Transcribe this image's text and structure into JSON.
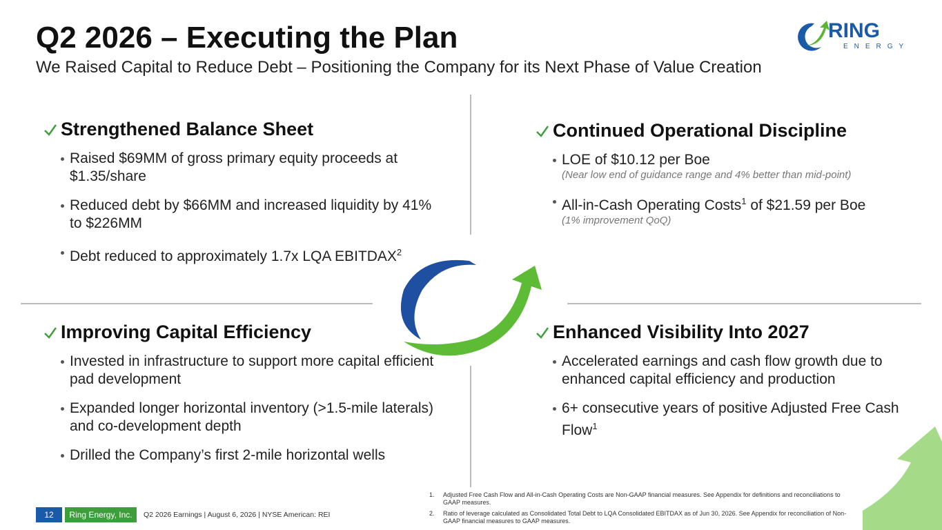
{
  "header": {
    "title": "Q2 2026 – Executing the Plan",
    "subtitle": "We Raised Capital to Reduce Debt – Positioning the Company for its Next Phase of Value Creation"
  },
  "logo": {
    "name": "RING",
    "tagline": "ENERGY"
  },
  "quadrants": [
    {
      "heading": "Strengthened Balance Sheet",
      "bullets": [
        {
          "text": "Raised $69MM of gross primary equity proceeds at $1.35/share"
        },
        {
          "text": "Reduced debt by $66MM and increased liquidity by 41% to $226MM"
        },
        {
          "text": "Debt reduced to approximately 1.7x LQA EBITDAX",
          "sup": "2"
        }
      ]
    },
    {
      "heading": "Continued Operational Discipline",
      "bullets": [
        {
          "text": "LOE of $10.12 per Boe",
          "note": "(Near low end of guidance range and 4% better than mid-point)"
        },
        {
          "text": "All-in-Cash Operating Costs",
          "sup": "1",
          "text_after": " of $21.59 per Boe",
          "note": "(1% improvement QoQ)"
        }
      ]
    },
    {
      "heading": "Improving Capital Efficiency",
      "bullets": [
        {
          "text": "Invested in infrastructure to support more capital efficient pad development"
        },
        {
          "text": "Expanded longer horizontal inventory (>1.5-mile laterals) and co-development depth"
        },
        {
          "text": "Drilled the Company’s first 2-mile horizontal wells"
        }
      ]
    },
    {
      "heading": "Enhanced Visibility Into 2027",
      "bullets": [
        {
          "text": "Accelerated earnings and cash flow growth due to enhanced capital efficiency and production"
        },
        {
          "text": "6+ consecutive years of positive Adjusted Free Cash Flow",
          "sup": "1"
        }
      ]
    }
  ],
  "footer": {
    "page": "12",
    "company": "Ring Energy, Inc.",
    "info": "Q2 2026 Earnings | August 6, 2026 | NYSE American: REI"
  },
  "footnotes": [
    {
      "number": "1.",
      "text": "Adjusted Free Cash Flow and All-in-Cash Operating Costs are Non-GAAP financial measures. See Appendix for definitions and reconciliations to GAAP measures."
    },
    {
      "number": "2.",
      "text": "Ratio of leverage calculated as Consolidated Total Debt to LQA Consolidated EBITDAX as of Jun 30, 2026. See Appendix for reconciliation of Non-GAAP financial measures to GAAP measures."
    }
  ]
}
